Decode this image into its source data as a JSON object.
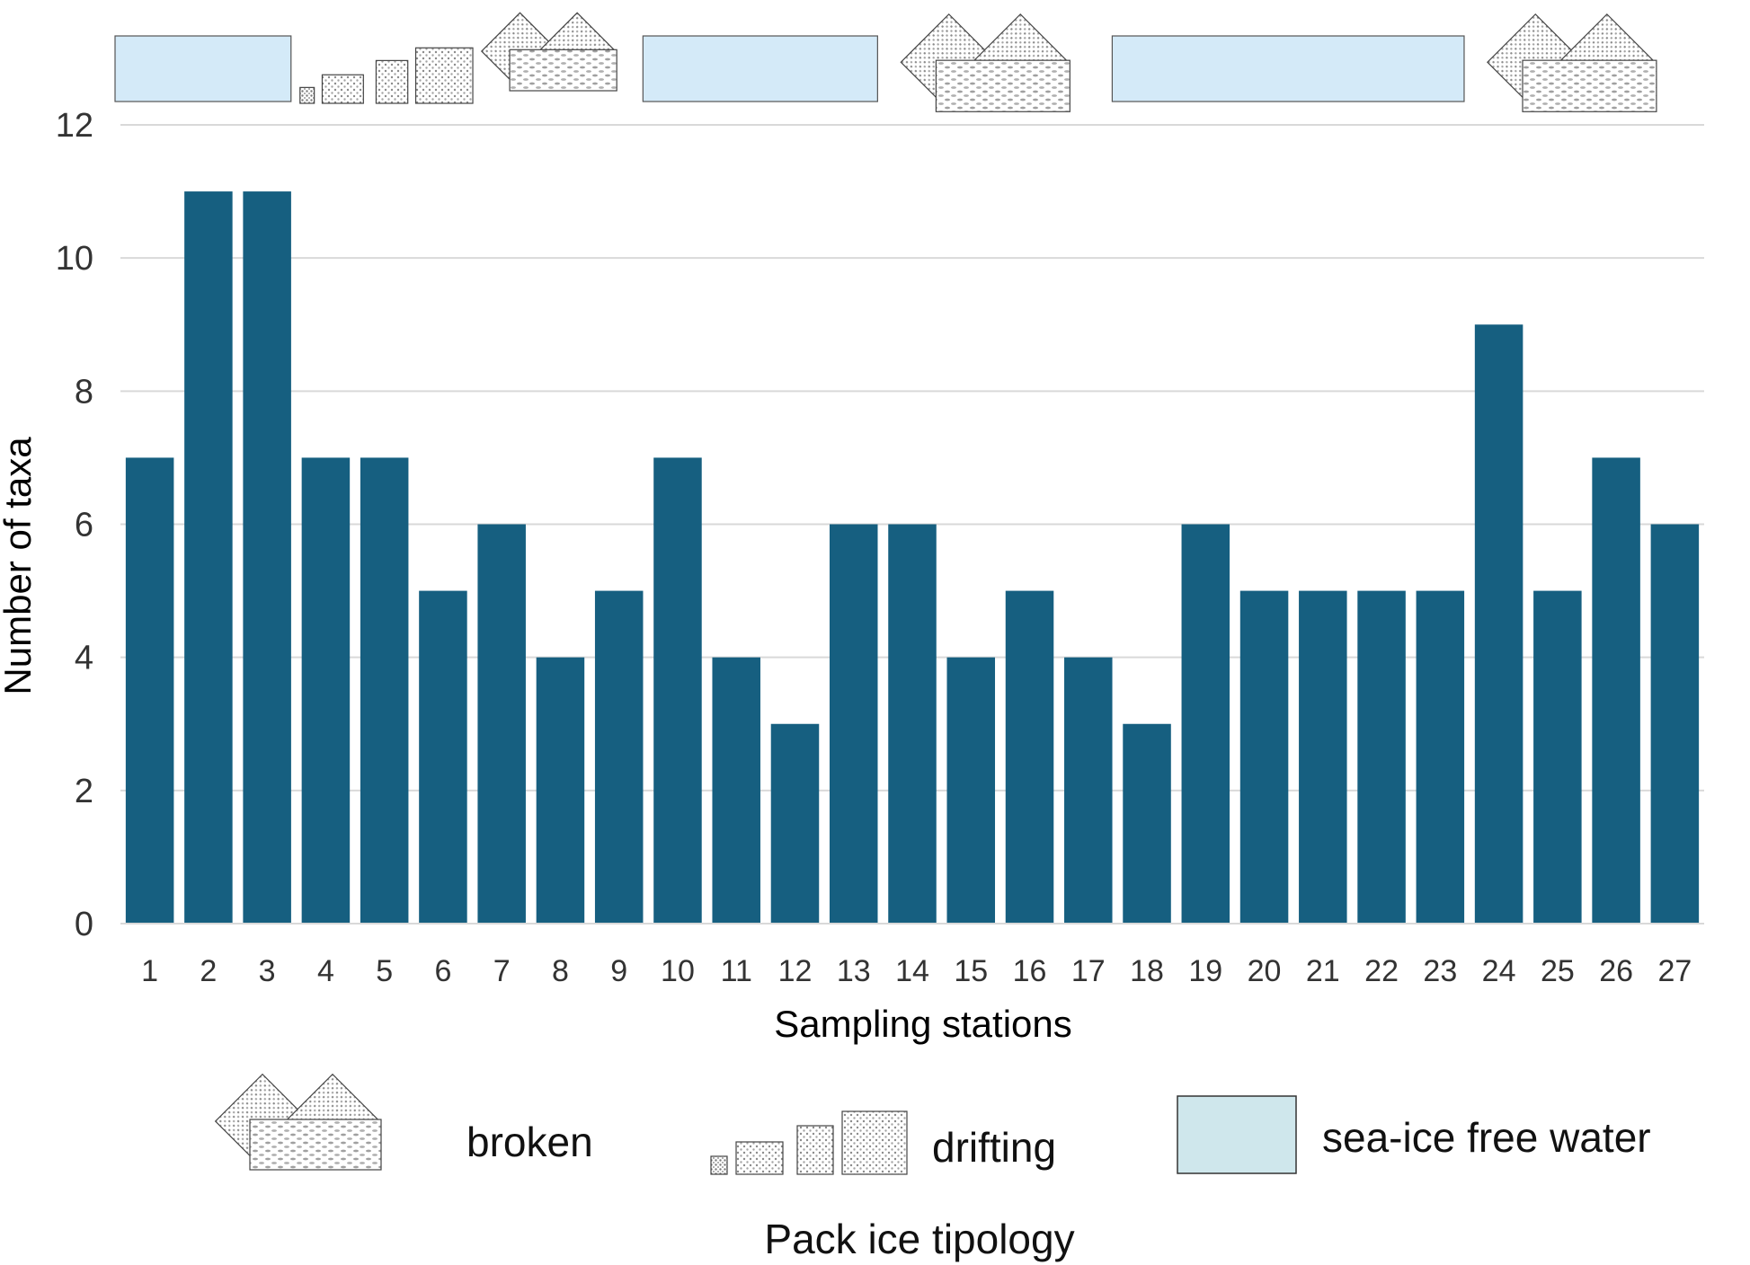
{
  "chart_data": {
    "type": "bar",
    "categories": [
      "1",
      "2",
      "3",
      "4",
      "5",
      "6",
      "7",
      "8",
      "9",
      "10",
      "11",
      "12",
      "13",
      "14",
      "15",
      "16",
      "17",
      "18",
      "19",
      "20",
      "21",
      "22",
      "23",
      "24",
      "25",
      "26",
      "27"
    ],
    "values": [
      7,
      11,
      11,
      7,
      7,
      5,
      6,
      4,
      5,
      7,
      4,
      3,
      6,
      6,
      4,
      5,
      4,
      3,
      6,
      5,
      5,
      5,
      5,
      9,
      5,
      7,
      6
    ],
    "xlabel": "Sampling stations",
    "ylabel": "Number of taxa",
    "ylim": [
      0,
      12
    ],
    "yticks": [
      "0",
      "2",
      "4",
      "6",
      "8",
      "10",
      "12"
    ],
    "grid": true,
    "bar_color": "#165f80",
    "ice_strip": [
      {
        "type": "sea-ice free water",
        "from": 1,
        "to": 3
      },
      {
        "type": "drifting",
        "from": 4,
        "to": 6
      },
      {
        "type": "broken",
        "from": 7,
        "to": 9
      },
      {
        "type": "sea-ice free water",
        "from": 10,
        "to": 13
      },
      {
        "type": "broken",
        "from": 14,
        "to": 17
      },
      {
        "type": "sea-ice free water",
        "from": 18,
        "to": 23
      },
      {
        "type": "broken",
        "from": 24,
        "to": 27
      }
    ],
    "legend": {
      "title": "Pack ice tipology",
      "placement": "bottom",
      "items": [
        {
          "label": "broken",
          "icon": "broken-ice-icon"
        },
        {
          "label": "drifting",
          "icon": "drifting-ice-icon"
        },
        {
          "label": "sea-ice free water",
          "icon": "water-icon",
          "color": "#cfe7ec"
        }
      ]
    },
    "colors": {
      "water_strip": "#d4eaf8",
      "water_legend": "#cfe7ec",
      "grid": "#d9d9d9"
    }
  }
}
